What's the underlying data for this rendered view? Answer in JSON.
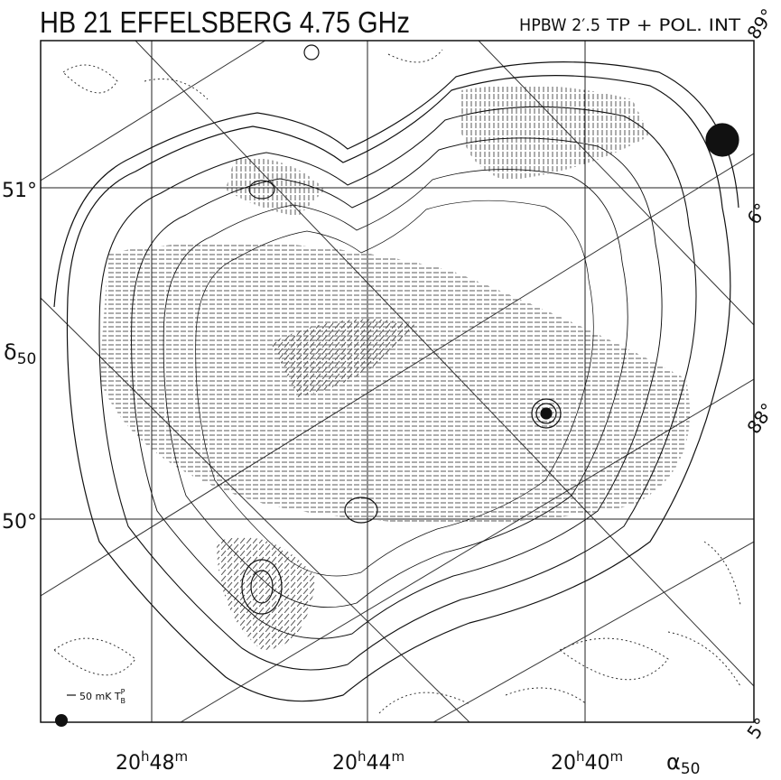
{
  "header": {
    "title": "HB 21 EFFELSBERG  4.75 GHz",
    "beam": "HPBW 2′.5",
    "mode": "TP + POL. INT"
  },
  "axes": {
    "dec_label": {
      "symbol": "δ",
      "sub": "50"
    },
    "ra_label": {
      "symbol": "α",
      "sub": "50"
    },
    "dec_ticks": [
      "51°",
      "50°"
    ],
    "ra_ticks": [
      {
        "h": "20",
        "hs": "h",
        "m": "48",
        "ms": "m"
      },
      {
        "h": "20",
        "hs": "h",
        "m": "44",
        "ms": "m"
      },
      {
        "h": "20",
        "hs": "h",
        "m": "40",
        "ms": "m"
      }
    ],
    "galactic_ticks": [
      "89°",
      "6°",
      "88°",
      "5°"
    ]
  },
  "scale_bar": {
    "text": "50 mK T",
    "sup": "P",
    "sub": "B"
  }
}
